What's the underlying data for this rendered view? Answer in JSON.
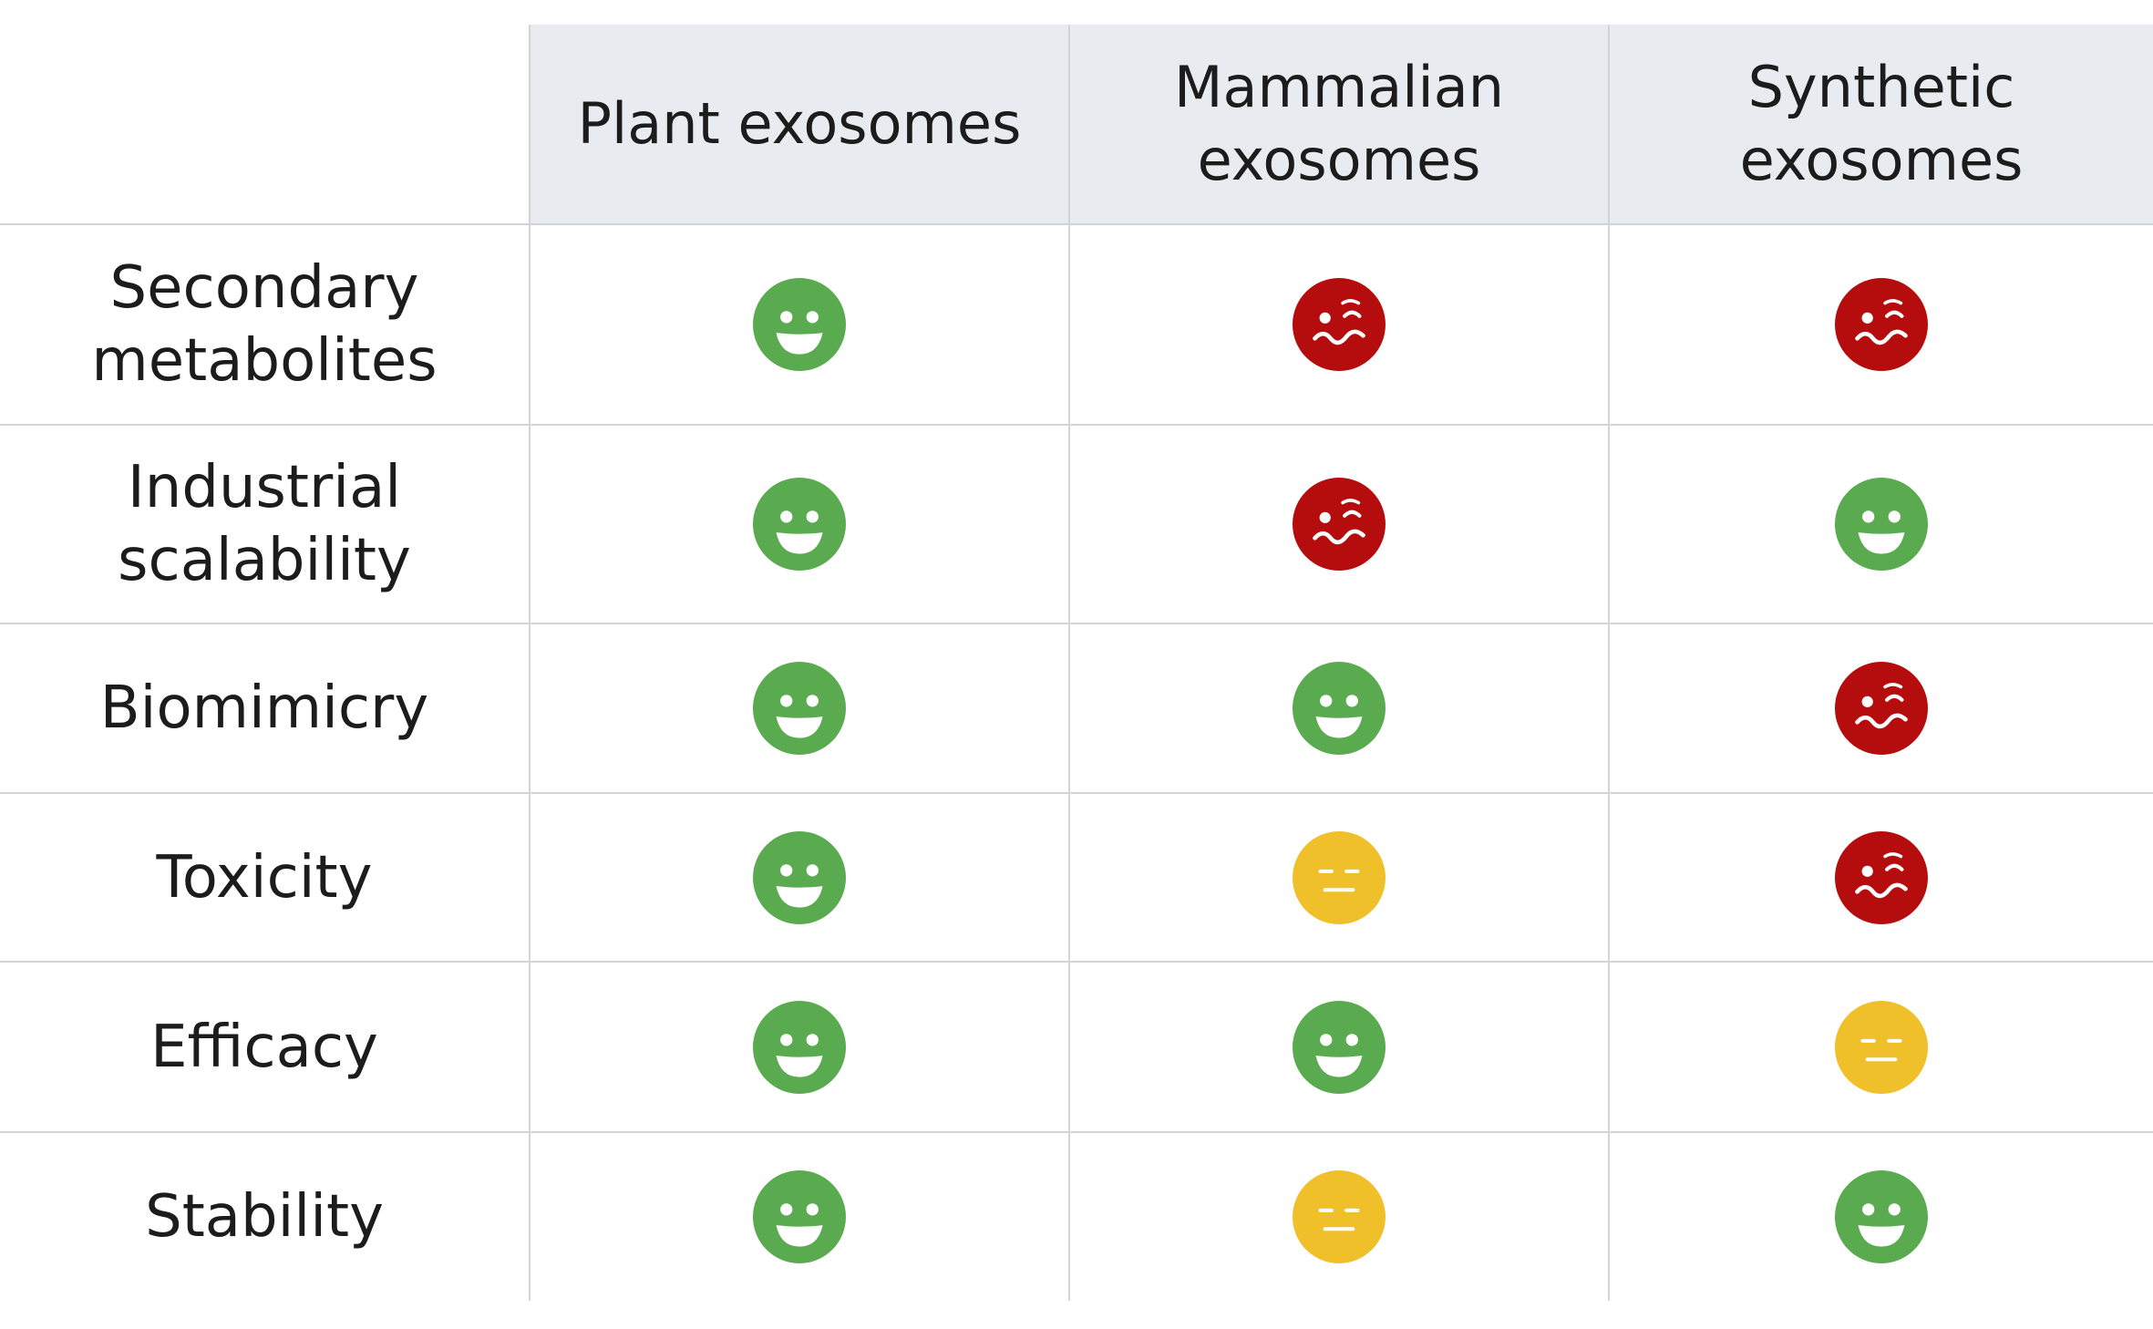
{
  "columns": [
    "Plant exosomes",
    "Mammalian\nexosomes",
    "Synthetic\nexosomes"
  ],
  "rows": [
    {
      "label": "Secondary\nmetabolites",
      "ratings": [
        "good",
        "bad",
        "bad"
      ]
    },
    {
      "label": "Industrial\nscalability",
      "ratings": [
        "good",
        "bad",
        "good"
      ]
    },
    {
      "label": "Biomimicry",
      "ratings": [
        "good",
        "good",
        "bad"
      ]
    },
    {
      "label": "Toxicity",
      "ratings": [
        "good",
        "neutral",
        "bad"
      ]
    },
    {
      "label": "Efficacy",
      "ratings": [
        "good",
        "good",
        "neutral"
      ]
    },
    {
      "label": "Stability",
      "ratings": [
        "good",
        "neutral",
        "good"
      ]
    }
  ],
  "icons": {
    "good": {
      "name": "smiling-face-icon",
      "color": "#5aaa4f"
    },
    "neutral": {
      "name": "expressionless-face-icon",
      "color": "#f0c02a"
    },
    "bad": {
      "name": "woozy-face-icon",
      "color": "#b50d0d"
    }
  }
}
